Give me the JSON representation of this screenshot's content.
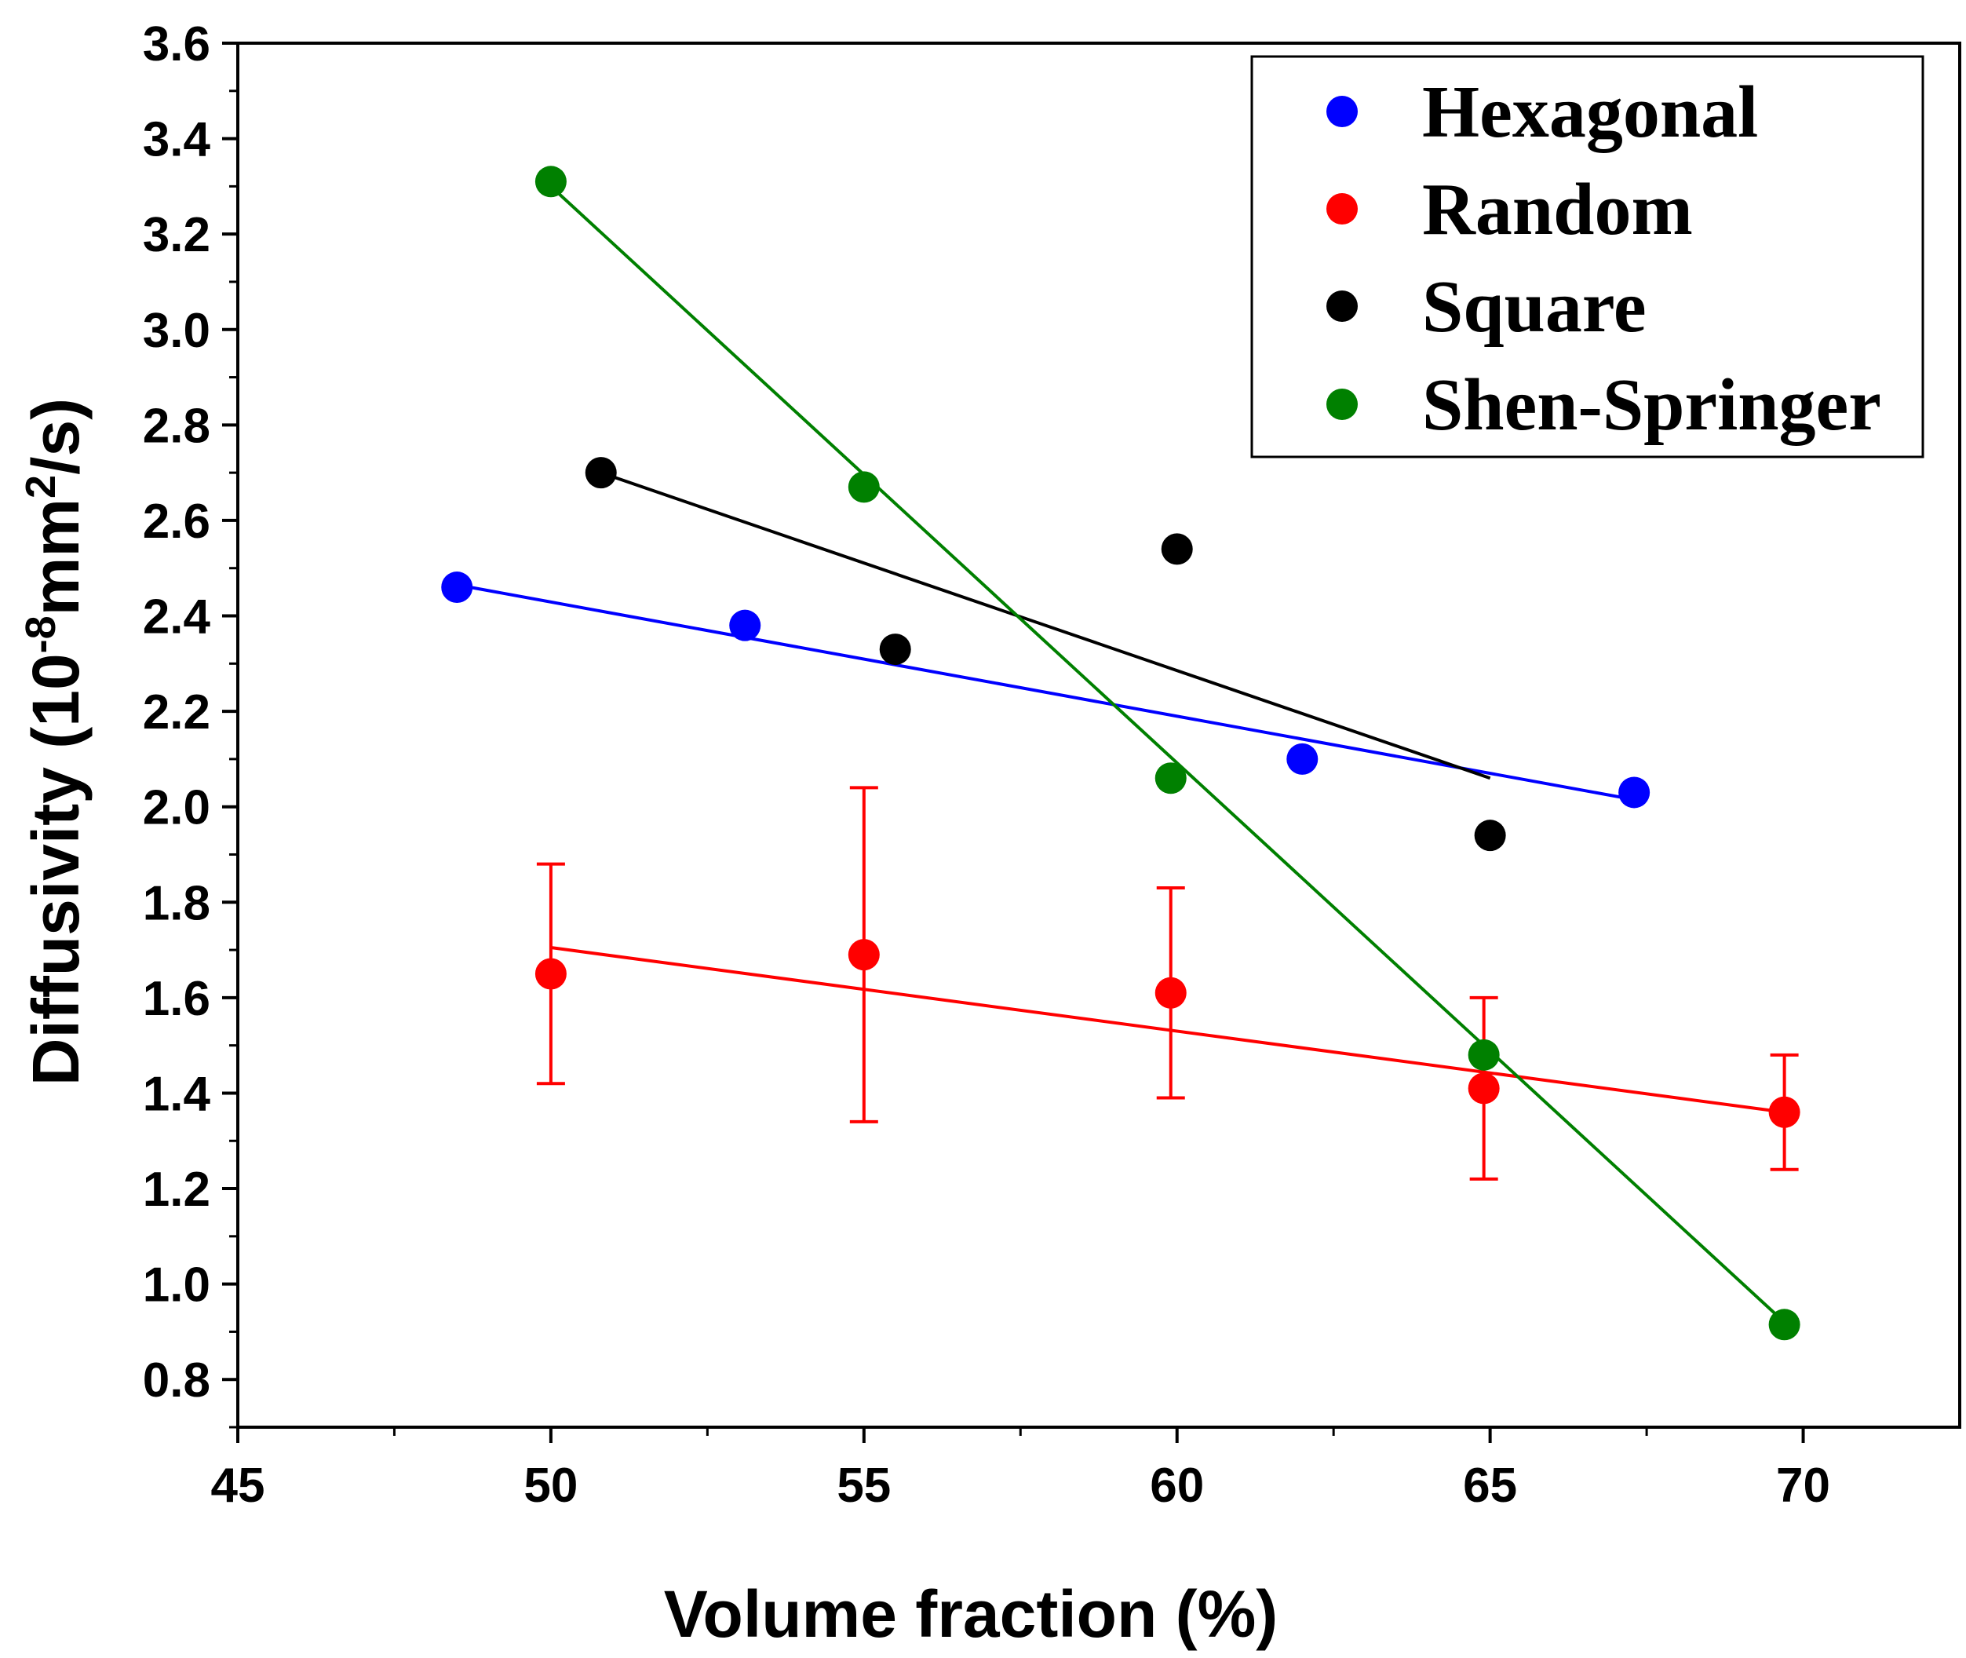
{
  "chart_data": {
    "type": "scatter",
    "xlabel": "Volume fraction (%)",
    "ylabel": {
      "prefix": "Diffusivity (10",
      "exp1": "-8",
      "mid": "mm",
      "exp2": "2",
      "suffix": "/s)"
    },
    "xlim": [
      45,
      72.5
    ],
    "ylim": [
      0.7,
      3.6
    ],
    "xticks": [
      45,
      50,
      55,
      60,
      65,
      70
    ],
    "xtick_labels": [
      "45",
      "50",
      "55",
      "60",
      "65",
      "70"
    ],
    "yticks": [
      0.8,
      1.0,
      1.2,
      1.4,
      1.6,
      1.8,
      2.0,
      2.2,
      2.4,
      2.6,
      2.8,
      3.0,
      3.2,
      3.4,
      3.6
    ],
    "ytick_labels": [
      "0.8",
      "1.0",
      "1.2",
      "1.4",
      "1.6",
      "1.8",
      "2.0",
      "2.2",
      "2.4",
      "2.6",
      "2.8",
      "3.0",
      "3.2",
      "3.4",
      "3.6"
    ],
    "legend_position": "top-right",
    "series": [
      {
        "name": "Hexagonal",
        "color": "#0000ff",
        "x": [
          48.5,
          53.1,
          62.0,
          67.3
        ],
        "y": [
          2.46,
          2.38,
          2.1,
          2.03
        ],
        "fit": {
          "x": [
            48.5,
            67.3
          ],
          "y": [
            2.465,
            2.015
          ]
        }
      },
      {
        "name": "Random",
        "color": "#ff0000",
        "x": [
          50.0,
          55.0,
          59.9,
          64.9,
          69.7
        ],
        "y": [
          1.65,
          1.69,
          1.61,
          1.41,
          1.36
        ],
        "err": [
          0.23,
          0.35,
          0.22,
          0.19,
          0.12
        ],
        "fit": {
          "x": [
            50.0,
            69.7
          ],
          "y": [
            1.705,
            1.36
          ]
        }
      },
      {
        "name": "Square",
        "color": "#000000",
        "x": [
          50.8,
          55.5,
          60.0,
          65.0
        ],
        "y": [
          2.7,
          2.33,
          2.54,
          1.94
        ],
        "fit": {
          "x": [
            50.8,
            65.0
          ],
          "y": [
            2.7,
            2.06
          ]
        }
      },
      {
        "name": "Shen-Springer",
        "color": "#008000",
        "x": [
          50.0,
          55.0,
          59.9,
          64.9,
          69.7
        ],
        "y": [
          3.31,
          2.67,
          2.06,
          1.48,
          0.915
        ],
        "fit": {
          "x": [
            50.0,
            69.7
          ],
          "y": [
            3.3,
            0.92
          ]
        }
      }
    ]
  }
}
